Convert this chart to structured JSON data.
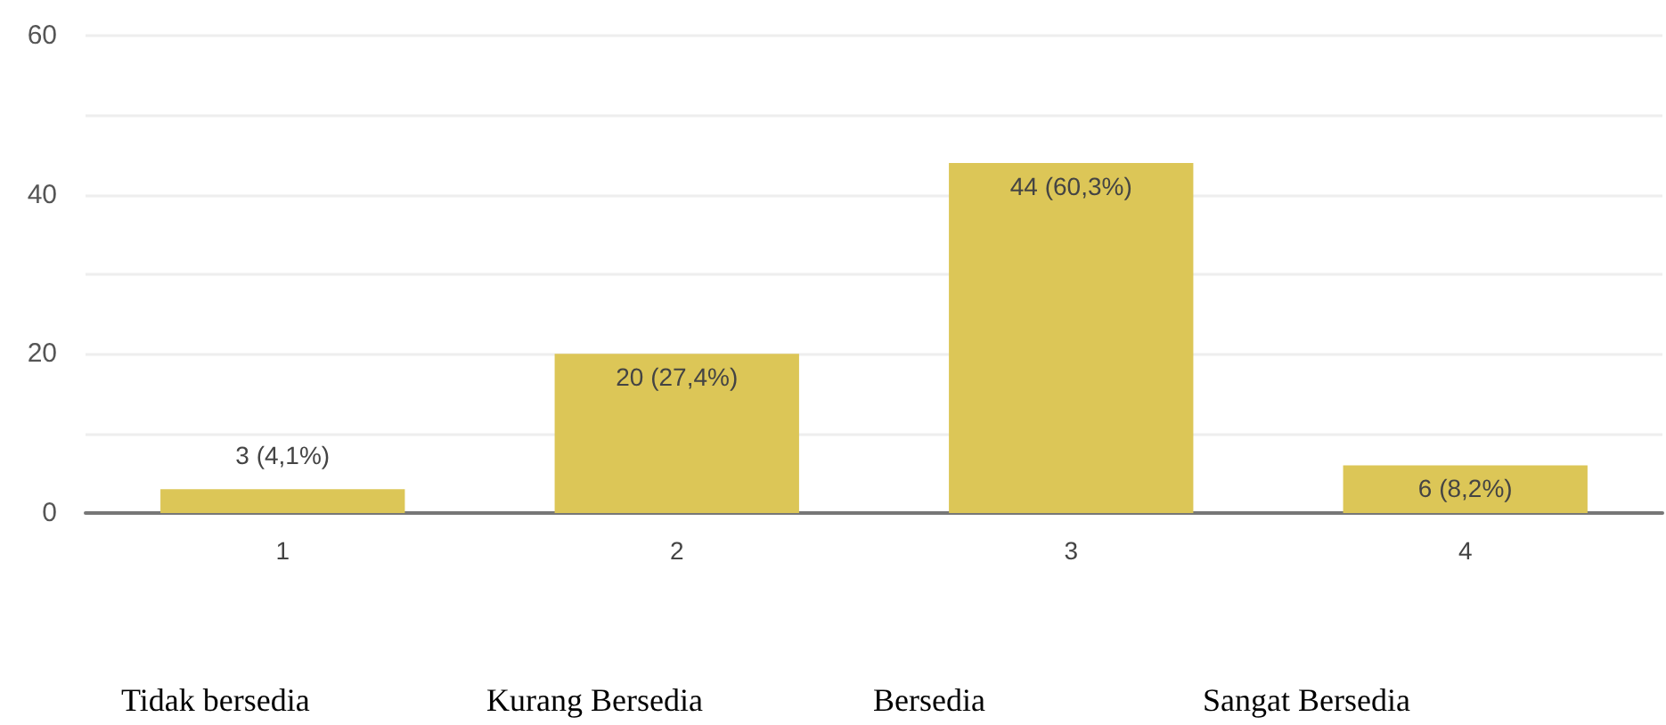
{
  "chart_data": {
    "type": "bar",
    "categories": [
      "1",
      "2",
      "3",
      "4"
    ],
    "values": [
      3,
      20,
      44,
      6
    ],
    "value_labels": [
      "3 (4,1%)",
      "20 (27,4%)",
      "44 (60,3%)",
      "6 (8,2%)"
    ],
    "color": "#dcc657",
    "ylim": [
      0,
      60
    ],
    "yticks": [
      0,
      {
        "value": 10,
        "label": null
      },
      20,
      {
        "value": 30,
        "label": null
      },
      40,
      {
        "value": 50,
        "label": null
      },
      60
    ],
    "grid": true,
    "annotations": [
      "Tidak bersedia",
      "Kurang Bersedia",
      "Bersedia",
      "Sangat Bersedia"
    ]
  }
}
